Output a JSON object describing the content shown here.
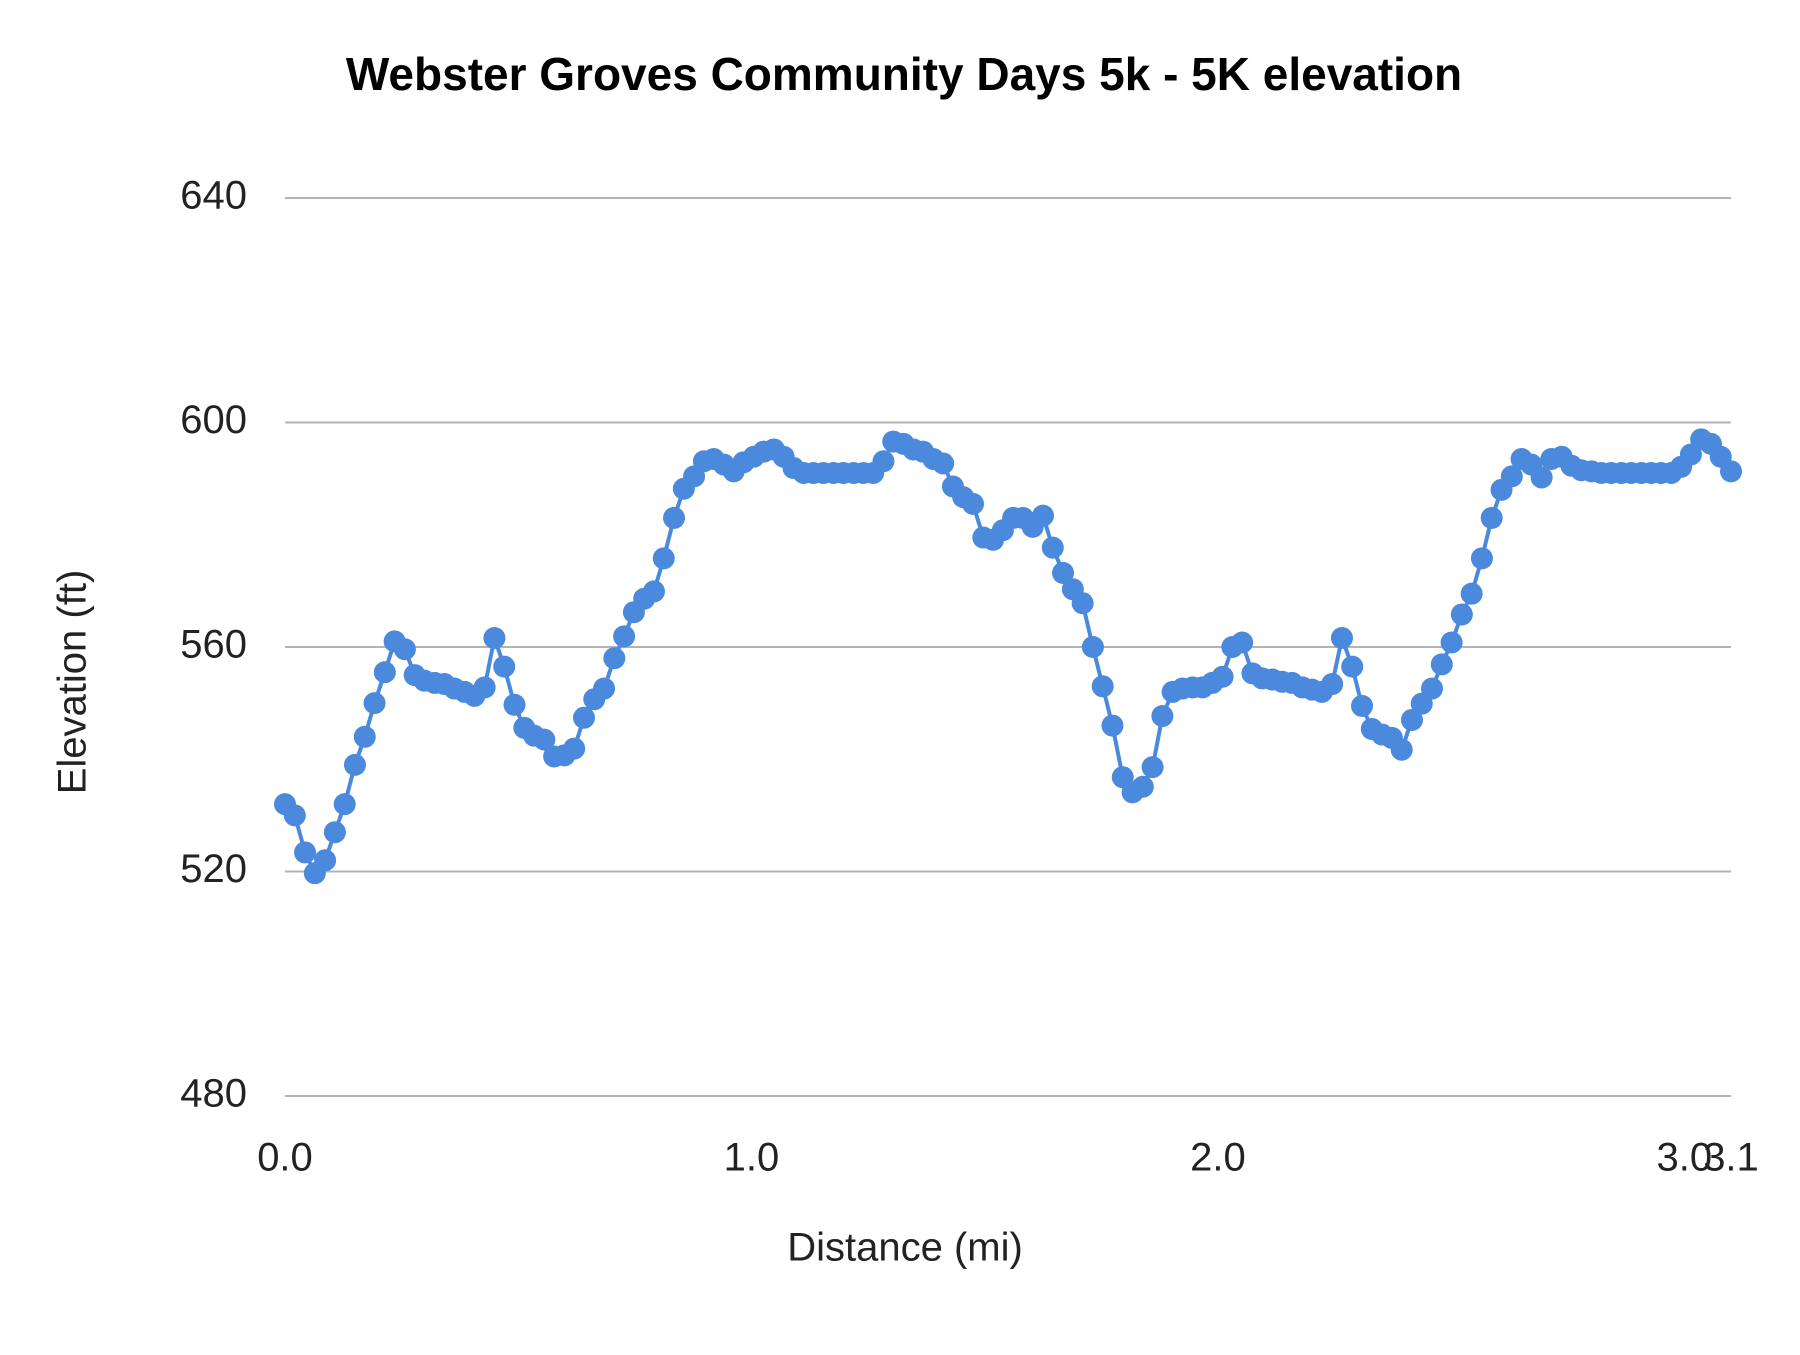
{
  "chart_data": {
    "type": "line",
    "title": "Webster Groves Community Days 5k - 5K elevation",
    "x_label": "Distance (mi)",
    "y_label": "Elevation (ft)",
    "xlim": [
      0,
      3.1
    ],
    "ylim": [
      480,
      640
    ],
    "xticks": [
      {
        "value": 0,
        "label": "0.0"
      },
      {
        "value": 1,
        "label": "1.0"
      },
      {
        "value": 2,
        "label": "2.0"
      },
      {
        "value": 3,
        "label": "3.0"
      },
      3.1
    ],
    "yticks": [
      480,
      520,
      560,
      600,
      640
    ],
    "grid": true,
    "series": [
      {
        "name": "Elevation",
        "color": "#4a89dc",
        "x": [
          0,
          0.021,
          0.043,
          0.064,
          0.086,
          0.107,
          0.128,
          0.15,
          0.171,
          0.192,
          0.214,
          0.235,
          0.257,
          0.278,
          0.299,
          0.321,
          0.342,
          0.363,
          0.385,
          0.406,
          0.428,
          0.449,
          0.47,
          0.492,
          0.513,
          0.534,
          0.556,
          0.577,
          0.599,
          0.62,
          0.641,
          0.663,
          0.684,
          0.706,
          0.727,
          0.748,
          0.77,
          0.791,
          0.812,
          0.834,
          0.855,
          0.877,
          0.898,
          0.919,
          0.941,
          0.962,
          0.983,
          1.005,
          1.026,
          1.048,
          1.069,
          1.09,
          1.112,
          1.133,
          1.154,
          1.176,
          1.197,
          1.219,
          1.24,
          1.261,
          1.283,
          1.304,
          1.326,
          1.347,
          1.368,
          1.39,
          1.411,
          1.432,
          1.454,
          1.475,
          1.497,
          1.518,
          1.539,
          1.561,
          1.582,
          1.603,
          1.625,
          1.646,
          1.668,
          1.689,
          1.71,
          1.732,
          1.753,
          1.774,
          1.796,
          1.817,
          1.839,
          1.86,
          1.881,
          1.903,
          1.924,
          1.946,
          1.967,
          1.988,
          2.01,
          2.031,
          2.052,
          2.074,
          2.095,
          2.117,
          2.138,
          2.159,
          2.181,
          2.202,
          2.223,
          2.245,
          2.266,
          2.288,
          2.309,
          2.33,
          2.352,
          2.373,
          2.394,
          2.416,
          2.437,
          2.459,
          2.48,
          2.501,
          2.523,
          2.544,
          2.566,
          2.587,
          2.608,
          2.63,
          2.651,
          2.672,
          2.694,
          2.715,
          2.737,
          2.758,
          2.779,
          2.801,
          2.822,
          2.843,
          2.865,
          2.886,
          2.908,
          2.929,
          2.95,
          2.972,
          2.993,
          3.014,
          3.036,
          3.057,
          3.078,
          3.1
        ],
        "values": [
          532,
          530,
          523.4,
          519.7,
          522,
          527,
          532,
          539,
          544,
          550,
          555.5,
          561,
          559.6,
          555,
          554,
          553.6,
          553.4,
          552.6,
          552,
          551.3,
          552.8,
          561.6,
          556.5,
          549.7,
          545.6,
          544.2,
          543.5,
          540.5,
          540.7,
          541.9,
          547.4,
          550.7,
          552.6,
          558,
          561.9,
          566.2,
          568.6,
          569.9,
          575.8,
          583,
          588.2,
          590.4,
          593.1,
          593.5,
          592.5,
          591.3,
          592.9,
          593.9,
          594.8,
          595.2,
          593.9,
          591.9,
          591,
          591,
          591,
          591,
          591,
          591,
          591,
          591,
          593.1,
          596.6,
          596.2,
          595.2,
          594.8,
          593.5,
          592.7,
          588.6,
          586.7,
          585.5,
          579.5,
          579.1,
          580.8,
          583,
          583,
          581.4,
          583.4,
          577.7,
          573.2,
          570.3,
          567.8,
          560,
          553,
          546,
          536.8,
          534.1,
          535.1,
          538.6,
          547.7,
          552,
          552.6,
          552.8,
          552.8,
          553.6,
          554.7,
          560,
          560.8,
          555.3,
          554.4,
          554.2,
          553.8,
          553.6,
          552.8,
          552.4,
          552,
          553.4,
          561.6,
          556.5,
          549.5,
          545.4,
          544.4,
          543.8,
          541.7,
          547,
          549.9,
          552.6,
          556.9,
          560.8,
          565.8,
          569.5,
          575.8,
          583,
          588,
          590.4,
          593.5,
          592.5,
          590.2,
          593.5,
          593.9,
          592.3,
          591.5,
          591.3,
          591,
          591,
          591,
          591,
          591,
          591,
          591,
          591,
          592.1,
          594.3,
          597,
          596.2,
          593.9,
          591.3
        ]
      }
    ]
  }
}
